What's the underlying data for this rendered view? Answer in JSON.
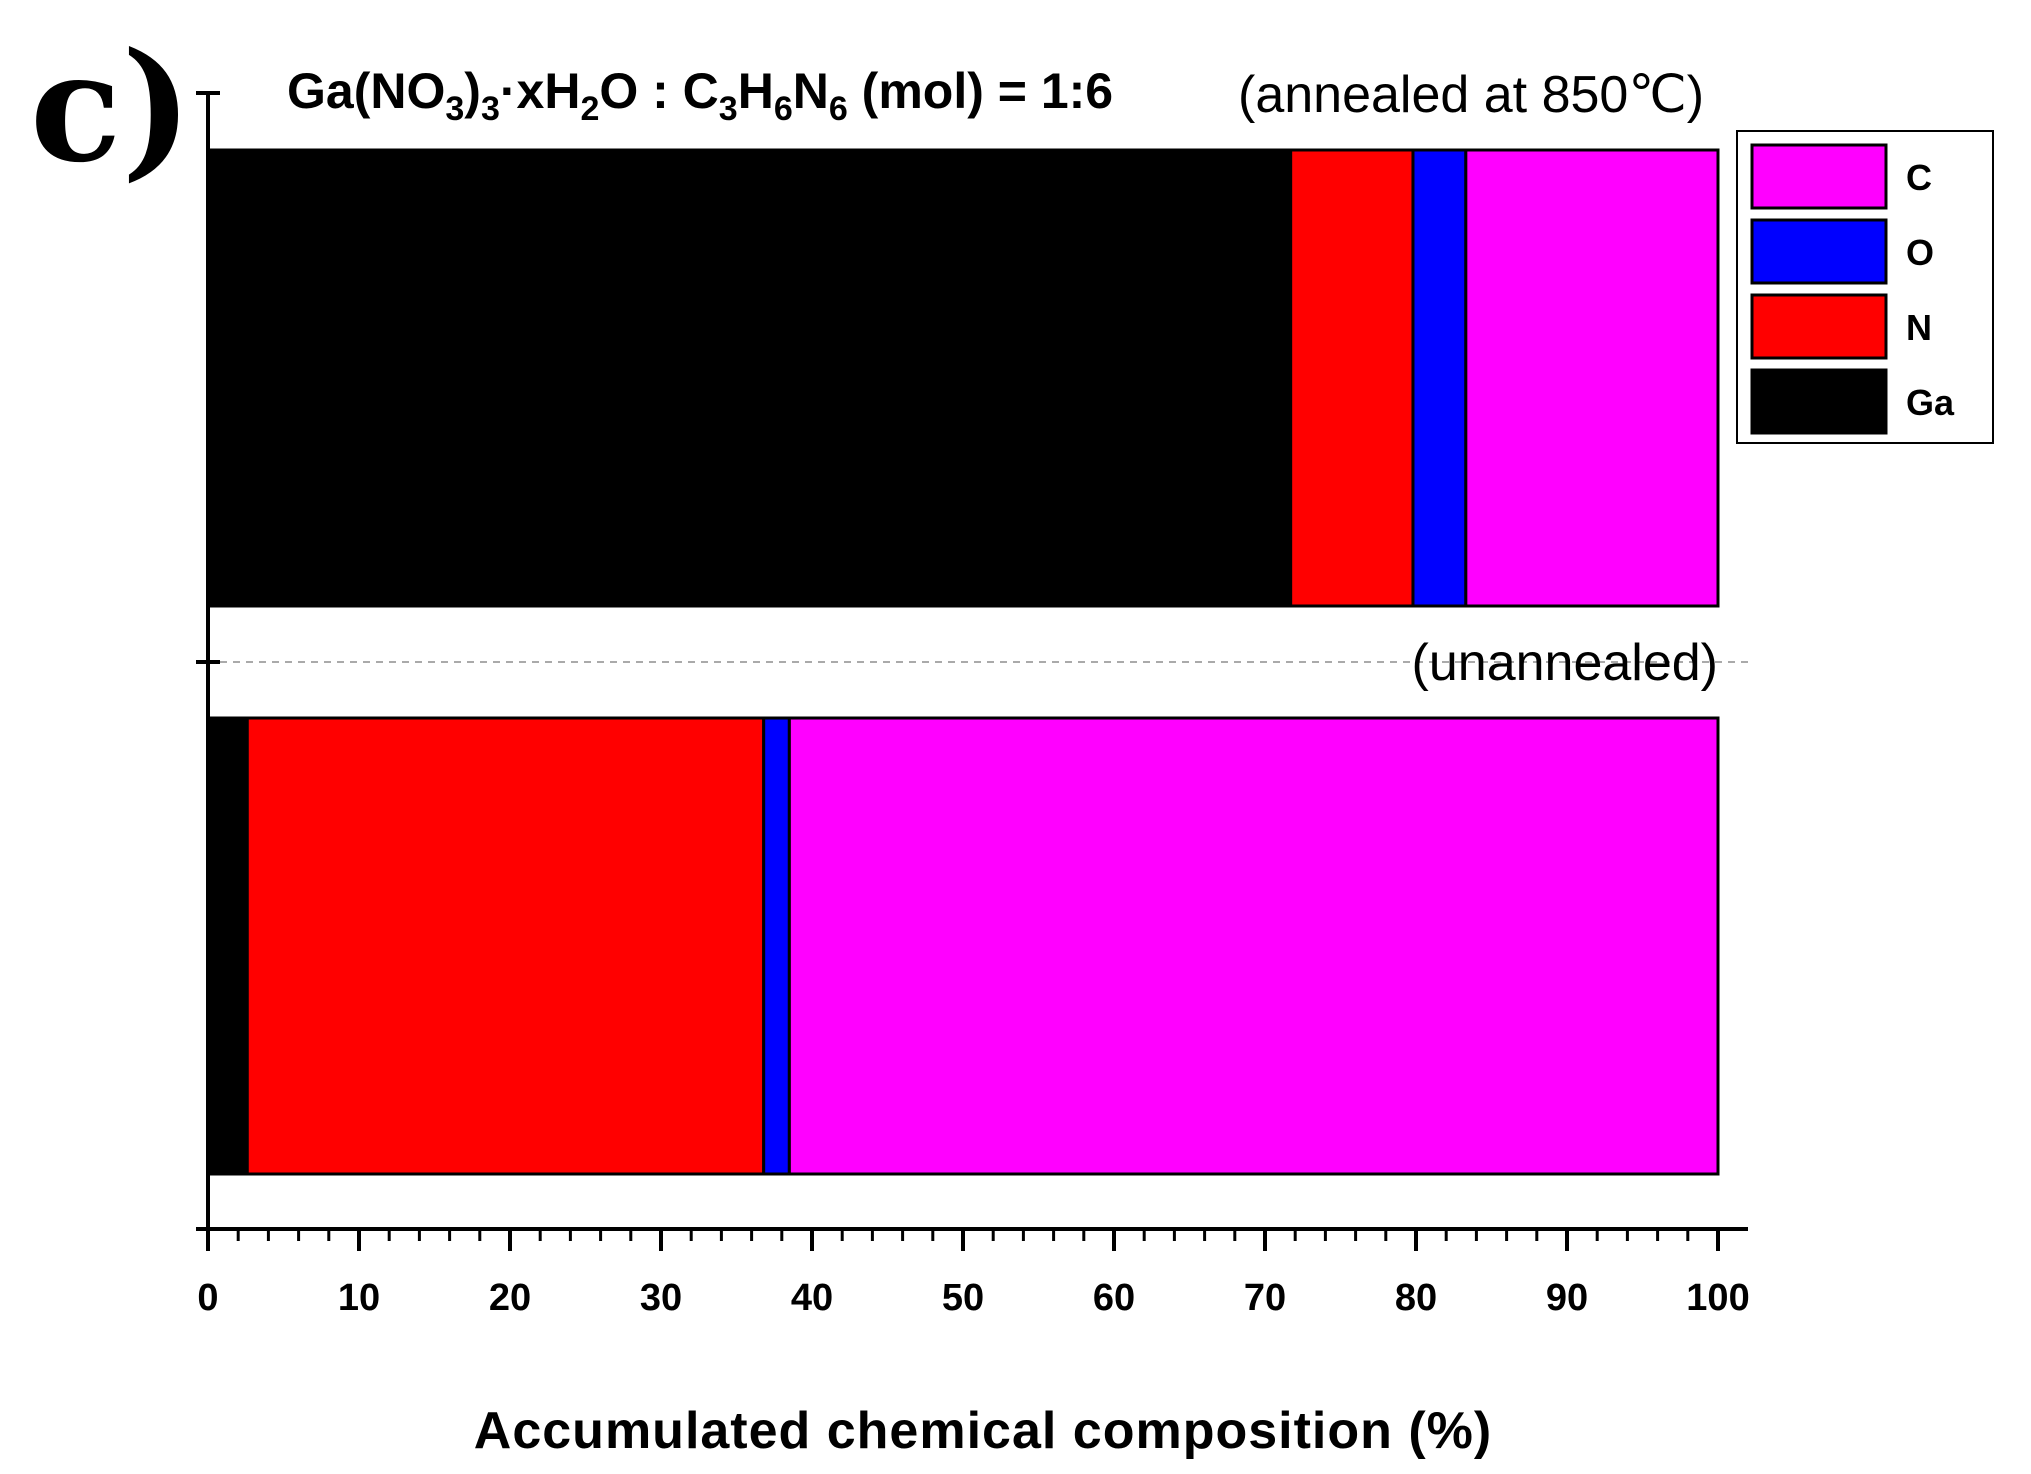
{
  "chart_data": {
    "type": "bar",
    "orientation": "horizontal",
    "stacked": true,
    "panel_label": "c)",
    "title": {
      "formula_parts": [
        {
          "text": "Ga(NO",
          "sub": false
        },
        {
          "text": "3",
          "sub": true
        },
        {
          "text": ")",
          "sub": false
        },
        {
          "text": "3",
          "sub": true
        },
        {
          "text": "·xH",
          "sub": false
        },
        {
          "text": "2",
          "sub": true
        },
        {
          "text": "O : C",
          "sub": false
        },
        {
          "text": "3",
          "sub": true
        },
        {
          "text": "H",
          "sub": false
        },
        {
          "text": "6",
          "sub": true
        },
        {
          "text": "N",
          "sub": false
        },
        {
          "text": "6",
          "sub": true
        },
        {
          "text": " (mol) = 1:6",
          "sub": false
        }
      ],
      "condition": "(annealed at 850℃)"
    },
    "xlabel": "Accumulated chemical composition (%)",
    "xlim": [
      0,
      100
    ],
    "xticks": [
      0,
      10,
      20,
      30,
      40,
      50,
      60,
      70,
      80,
      90,
      100
    ],
    "categories": [
      "(annealed at 850℃)",
      "(unannealed)"
    ],
    "bar_labels": [
      "",
      "(unannealed)"
    ],
    "series": [
      {
        "name": "Ga",
        "color": "#000000",
        "values": [
          71.7,
          2.6
        ]
      },
      {
        "name": "N",
        "color": "#ff0000",
        "values": [
          8.1,
          34.2
        ]
      },
      {
        "name": "O",
        "color": "#0000ff",
        "values": [
          3.5,
          1.7
        ]
      },
      {
        "name": "C",
        "color": "#ff00ff",
        "values": [
          16.7,
          61.5
        ]
      }
    ],
    "legend": {
      "placement": "top-right",
      "order": [
        "C",
        "O",
        "N",
        "Ga"
      ]
    },
    "grid": false,
    "separator_line": "dashed"
  }
}
